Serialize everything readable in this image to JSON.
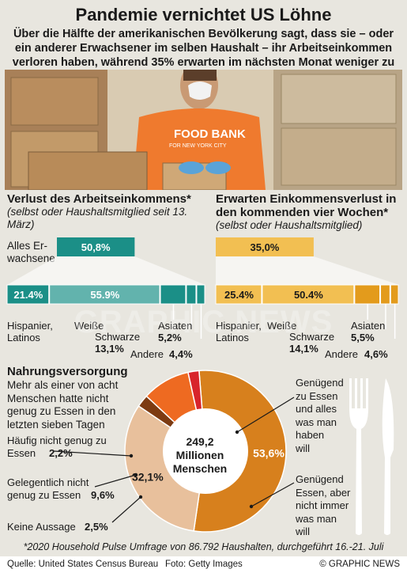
{
  "title": "Pandemie vernichtet US Löhne",
  "subtitle": "Über die Hälfte der amerikanischen Bevölkerung sagt, dass sie – oder ein anderer Erwachsener im selben Haushalt – ihr Arbeitseinkommen verloren haben,  während 35% erwarten im nächsten Monat weniger zu verdienen",
  "photo": {
    "shirt_text_1": "FOOD BANK",
    "shirt_text_2": "FOR NEW YORK CITY"
  },
  "watermark": "GRAPHIC NEWS",
  "colors": {
    "teal": "#1b8f87",
    "teal_light": "#62b3ad",
    "orange": "#e39b1c",
    "orange_light": "#f2bf52",
    "pie_main": "#d7801d",
    "pie_light": "#e8c09c",
    "pie_red": "#d8242b",
    "pie_orange": "#ee6a21",
    "pie_brown": "#7d3b12",
    "background": "#e8e6df"
  },
  "left_section": {
    "title": "Verlust des Arbeitseinkommens*",
    "note": "(selbst oder Haushaltsmitglied seit 13. März)",
    "overall_label_1": "Alles Er-",
    "overall_label_2": "wachsene"
  },
  "right_section": {
    "title": "Erwarten Einkommensverlust in den kommenden vier Wochen*",
    "note": "(selbst oder Haushaltsmitglied)"
  },
  "labels": {
    "hispanic_1": "Hispanier,",
    "hispanic_2": "Latinos",
    "white": "Weiße",
    "black": "Schwarze",
    "asian": "Asiaten",
    "other": "Andere",
    "left_black_value": "13,1%",
    "left_asian_value": "5,2%",
    "left_other_value": "4,4%",
    "right_black_value": "14,1%",
    "right_asian_value": "5,5%",
    "right_other_value": "4,6%"
  },
  "chart_data": [
    {
      "type": "bar",
      "title": "Verlust des Arbeitseinkommens*",
      "categories": [
        "Alles Erwachsene"
      ],
      "values": [
        50.8
      ],
      "value_labels": [
        "50,8%"
      ],
      "xlim": [
        0,
        100
      ]
    },
    {
      "type": "bar",
      "title": "Erwarten Einkommensverlust in den kommenden vier Wochen*",
      "categories": [
        "Alles Erwachsene"
      ],
      "values": [
        35.0
      ],
      "value_labels": [
        "35,0%"
      ],
      "xlim": [
        0,
        100
      ]
    },
    {
      "type": "bar",
      "title": "Verlust des Arbeitseinkommens*",
      "stacked": true,
      "categories": [
        "Hispanier, Latinos",
        "Weiße",
        "Schwarze",
        "Asiaten",
        "Andere"
      ],
      "values": [
        21.4,
        55.9,
        13.1,
        5.2,
        4.4
      ],
      "value_labels": [
        "21.4%",
        "55.9%",
        "13,1%",
        "5,2%",
        "4,4%"
      ]
    },
    {
      "type": "bar",
      "title": "Erwarten Einkommensverlust in den kommenden vier Wochen*",
      "stacked": true,
      "categories": [
        "Hispanier, Latinos",
        "Weiße",
        "Schwarze",
        "Asiaten",
        "Andere"
      ],
      "values": [
        25.4,
        50.4,
        14.1,
        5.5,
        4.6
      ],
      "value_labels": [
        "25.4%",
        "50.4%",
        "14,1%",
        "5,5%",
        "4,6%"
      ]
    },
    {
      "type": "pie",
      "title": "Nahrungsversorgung",
      "center_value": "249,2",
      "center_label_1": "Millionen",
      "center_label_2": "Menschen",
      "categories": [
        "Genügend zu Essen und alles was man haben will",
        "Genügend Essen, aber nicht immer was man will",
        "Keine Aussage",
        "Gelegentlich nicht genug zu Essen",
        "Häufig nicht genug zu Essen"
      ],
      "values": [
        53.6,
        32.1,
        2.5,
        9.6,
        2.2
      ],
      "value_labels": [
        "53,6%",
        "32,1%",
        "2,5%",
        "9,6%",
        "2,2%"
      ]
    }
  ],
  "food": {
    "title": "Nahrungsversorgung",
    "note_lines": [
      "Mehr als einer von acht",
      "Menschen hatte nicht",
      "genug zu Essen in den",
      "letzten sieben Tagen"
    ],
    "label_often_1": "Häufig nicht genug zu",
    "label_often_2": "Essen",
    "label_occ_1": "Gelegentlich nicht",
    "label_occ_2": "genug zu Essen",
    "label_none": "Keine Aussage",
    "label_enough_lines": [
      "Genügend",
      "zu Essen",
      "und alles",
      "was man",
      "haben",
      "will"
    ],
    "label_enough_not_lines": [
      "Genügend",
      "Essen, aber",
      "nicht immer",
      "was man",
      "will"
    ]
  },
  "footnote": "*2020 Household Pulse Umfrage von 86.792 Haushalten, durchgeführt 16.-21. Juli",
  "footer": {
    "source": "Quelle: United States Census Bureau",
    "photo": "Foto: Getty Images",
    "copyright": "© GRAPHIC NEWS"
  }
}
